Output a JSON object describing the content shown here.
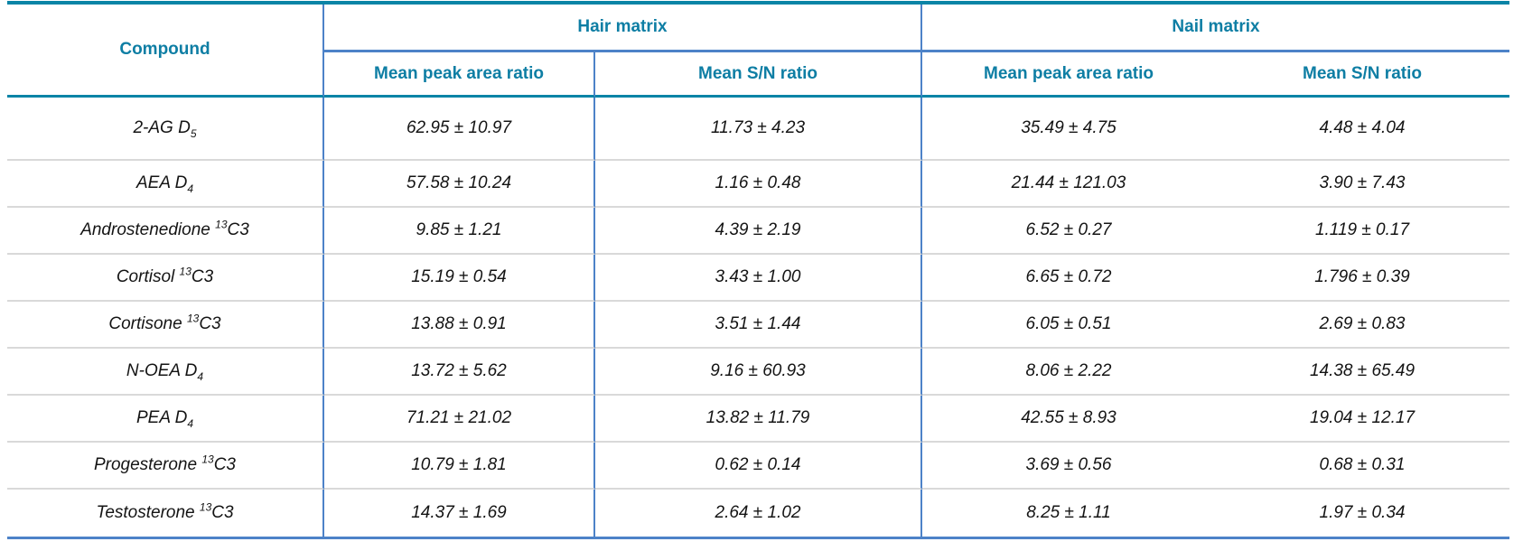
{
  "table": {
    "compound_header": "Compound",
    "group_headers": {
      "hair": "Hair matrix",
      "nail": "Nail matrix"
    },
    "sub_headers": [
      "Mean peak area ratio",
      "Mean S/N ratio",
      "Mean peak area ratio",
      "Mean S/N ratio"
    ],
    "rows": [
      {
        "compound": {
          "name": "2-AG D",
          "sup": "",
          "sub": "5",
          "suffix": ""
        },
        "hair_peak": "62.95 ± 10.97",
        "hair_sn": "11.73 ± 4.23",
        "nail_peak": "35.49 ± 4.75",
        "nail_sn": "4.48 ± 4.04"
      },
      {
        "compound": {
          "name": "AEA D",
          "sup": "",
          "sub": "4",
          "suffix": ""
        },
        "hair_peak": "57.58 ± 10.24",
        "hair_sn": "1.16 ± 0.48",
        "nail_peak": "21.44 ± 121.03",
        "nail_sn": "3.90 ± 7.43"
      },
      {
        "compound": {
          "name": "Androstenedione ",
          "sup": "13",
          "sub": "",
          "suffix": "C3"
        },
        "hair_peak": "9.85 ± 1.21",
        "hair_sn": "4.39 ± 2.19",
        "nail_peak": "6.52 ± 0.27",
        "nail_sn": "1.119 ± 0.17"
      },
      {
        "compound": {
          "name": "Cortisol ",
          "sup": "13",
          "sub": "",
          "suffix": "C3"
        },
        "hair_peak": "15.19 ± 0.54",
        "hair_sn": "3.43 ± 1.00",
        "nail_peak": "6.65 ± 0.72",
        "nail_sn": "1.796 ± 0.39"
      },
      {
        "compound": {
          "name": "Cortisone ",
          "sup": "13",
          "sub": "",
          "suffix": "C3"
        },
        "hair_peak": "13.88 ± 0.91",
        "hair_sn": "3.51 ± 1.44",
        "nail_peak": "6.05 ± 0.51",
        "nail_sn": "2.69 ± 0.83"
      },
      {
        "compound": {
          "name": "N-OEA D",
          "sup": "",
          "sub": "4",
          "suffix": ""
        },
        "hair_peak": "13.72 ± 5.62",
        "hair_sn": "9.16 ± 60.93",
        "nail_peak": "8.06 ± 2.22",
        "nail_sn": "14.38 ± 65.49"
      },
      {
        "compound": {
          "name": "PEA D",
          "sup": "",
          "sub": "4",
          "suffix": ""
        },
        "hair_peak": "71.21 ± 21.02",
        "hair_sn": "13.82 ± 11.79",
        "nail_peak": "42.55 ± 8.93",
        "nail_sn": "19.04 ± 12.17"
      },
      {
        "compound": {
          "name": "Progesterone ",
          "sup": "13",
          "sub": "",
          "suffix": "C3"
        },
        "hair_peak": "10.79 ± 1.81",
        "hair_sn": "0.62 ± 0.14",
        "nail_peak": "3.69 ± 0.56",
        "nail_sn": "0.68 ± 0.31"
      },
      {
        "compound": {
          "name": "Testosterone ",
          "sup": "13",
          "sub": "",
          "suffix": "C3"
        },
        "hair_peak": "14.37 ± 1.69",
        "hair_sn": "2.64 ± 1.02",
        "nail_peak": "8.25 ± 1.11",
        "nail_sn": "1.97 ± 0.34"
      }
    ],
    "colors": {
      "header_text": "#0e7ea4",
      "teal_border": "#0a84a6",
      "blue_border": "#4d82c8",
      "row_divider": "#d9d9d9",
      "data_text": "#141414"
    }
  }
}
